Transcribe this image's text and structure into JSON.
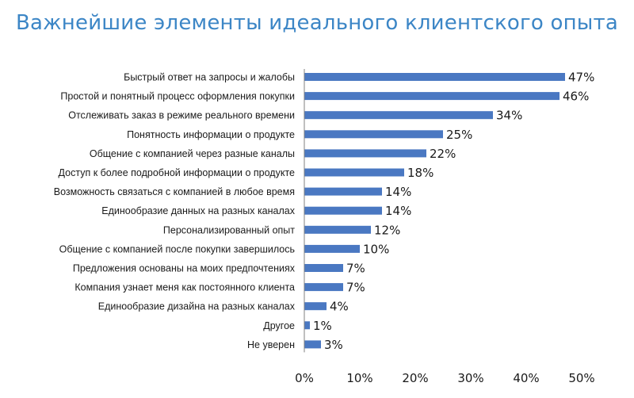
{
  "chart_data": {
    "type": "bar",
    "orientation": "horizontal",
    "title": "Важнейшие элементы идеального клиентского опыта",
    "categories": [
      "Быстрый ответ на запросы и жалобы",
      "Простой и понятный процесс оформления покупки",
      "Отслеживать заказ в режиме реального времени",
      "Понятность информации о продукте",
      "Общение с компанией через разные каналы",
      "Доступ к более подробной информации о продукте",
      "Возможность связаться с компанией в любое время",
      "Единообразие данных на разных каналах",
      "Персонализированный опыт",
      "Общение с компанией после покупки завершилось",
      "Предложения основаны на моих предпочтениях",
      "Компания узнает меня как постоянного клиента",
      "Единообразие дизайна на разных каналах",
      "Другое",
      "Не уверен"
    ],
    "values": [
      47,
      46,
      34,
      25,
      22,
      18,
      14,
      14,
      12,
      10,
      7,
      7,
      4,
      1,
      3
    ],
    "value_labels": [
      "47%",
      "46%",
      "34%",
      "25%",
      "22%",
      "18%",
      "14%",
      "14%",
      "12%",
      "10%",
      "7%",
      "7%",
      "4%",
      "1%",
      "3%"
    ],
    "xlim": [
      0,
      50
    ],
    "xticks": [
      "0%",
      "10%",
      "20%",
      "30%",
      "40%",
      "50%"
    ],
    "xtick_values": [
      0,
      10,
      20,
      30,
      40,
      50
    ],
    "bar_color": "#4a78c2",
    "title_color": "#3c86c6",
    "grid": false,
    "legend": "none"
  }
}
